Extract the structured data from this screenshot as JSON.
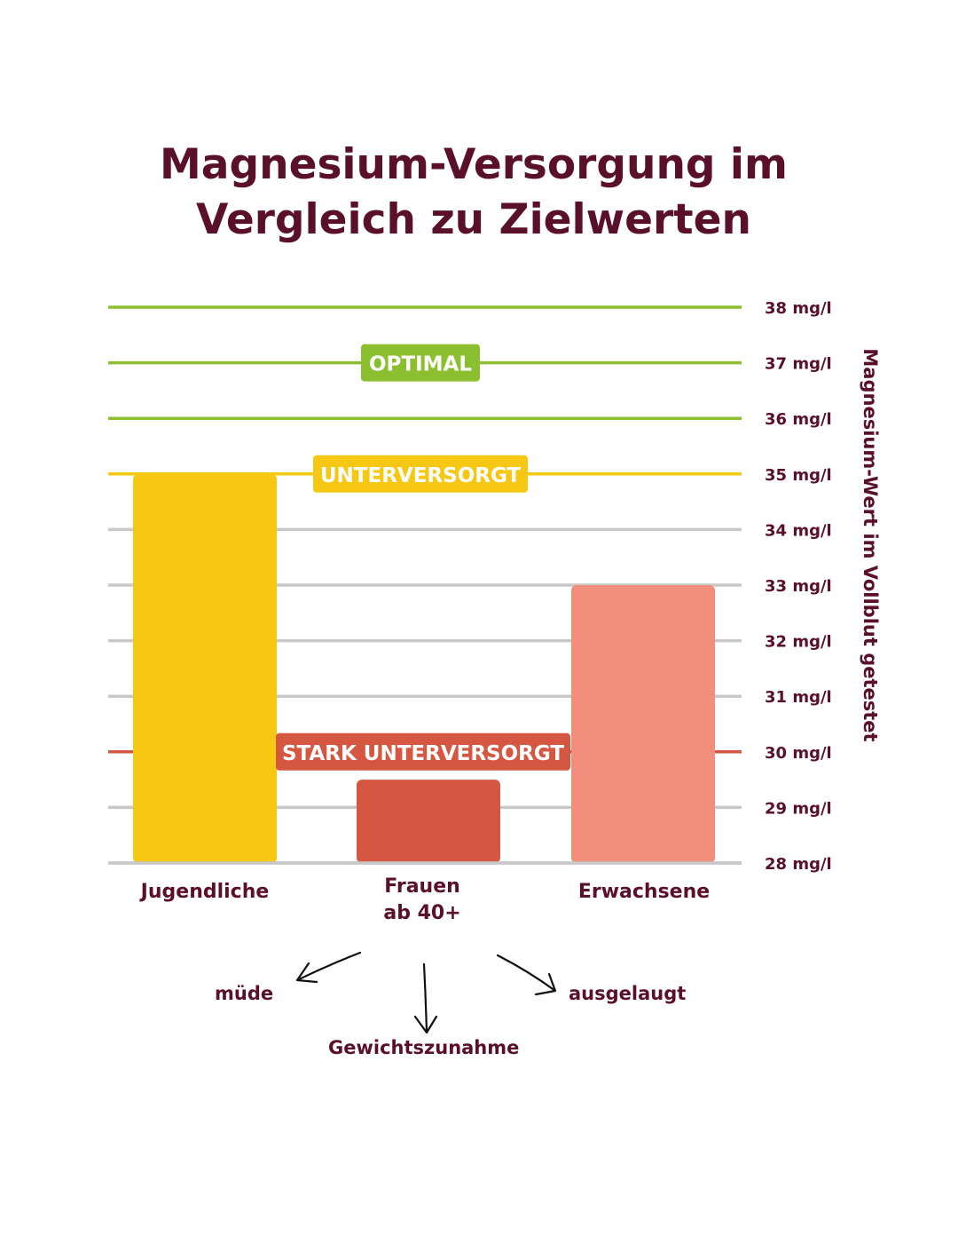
{
  "title": {
    "line1": "Magnesium-Versorgung im",
    "line2": "Vergleich zu Zielwerten"
  },
  "colors": {
    "title": "#5a1029",
    "green": "#8bbf2f",
    "yellow": "#f6c814",
    "red": "#d65741",
    "salmon": "#f28f7c",
    "grid": "#c8c8c8"
  },
  "chart_data": {
    "type": "bar",
    "title": "Magnesium-Versorgung im Vergleich zu Zielwerten",
    "ylabel": "Magnesium-Wert im Vollblut getestet",
    "ylim": [
      28,
      38
    ],
    "y_ticks": [
      {
        "value": 38,
        "label": "38 mg/l"
      },
      {
        "value": 37,
        "label": "37 mg/l"
      },
      {
        "value": 36,
        "label": "36 mg/l"
      },
      {
        "value": 35,
        "label": "35 mg/l"
      },
      {
        "value": 34,
        "label": "34 mg/l"
      },
      {
        "value": 33,
        "label": "33 mg/l"
      },
      {
        "value": 32,
        "label": "32 mg/l"
      },
      {
        "value": 31,
        "label": "31 mg/l"
      },
      {
        "value": 30,
        "label": "30 mg/l"
      },
      {
        "value": 29,
        "label": "29 mg/l"
      },
      {
        "value": 28,
        "label": "28 mg/l"
      }
    ],
    "categories": [
      "Jugendliche",
      "Frauen ab 40+",
      "Erwachsene"
    ],
    "category_label_lines": [
      [
        "Jugendliche"
      ],
      [
        "Frauen",
        "ab 40+"
      ],
      [
        "Erwachsene"
      ]
    ],
    "values": [
      35,
      29.5,
      33
    ],
    "bar_colors": [
      "#f6c814",
      "#d65741",
      "#f28f7c"
    ],
    "grid": true,
    "zones": [
      {
        "label": "OPTIMAL",
        "value": 37,
        "color": "#8bbf2f"
      },
      {
        "label": "UNTERVERSORGT",
        "value": 35,
        "color": "#f6c814"
      },
      {
        "label": "STARK UNTERVERSORGT",
        "value": 30,
        "color": "#d65741"
      }
    ],
    "threshold_line_colors": [
      {
        "value": 38,
        "color": "#8bbf2f"
      },
      {
        "value": 37,
        "color": "#8bbf2f"
      },
      {
        "value": 36,
        "color": "#8bbf2f"
      },
      {
        "value": 35,
        "color": "#f6c814"
      },
      {
        "value": 30,
        "color": "#d65741"
      }
    ],
    "annotations": {
      "left": "müde",
      "center": "Gewichtszunahme",
      "right": "ausgelaugt"
    }
  }
}
